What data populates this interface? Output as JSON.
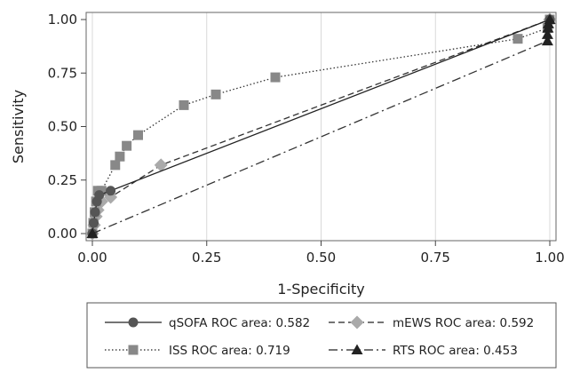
{
  "chart_data": {
    "type": "line",
    "xlabel": "1-Specificity",
    "ylabel": "Sensitivity",
    "xlim": [
      0,
      1
    ],
    "ylim": [
      0,
      1
    ],
    "x_ticks": [
      "0.00",
      "0.25",
      "0.50",
      "0.75",
      "1.00"
    ],
    "y_ticks": [
      "0.00",
      "0.25",
      "0.50",
      "0.75",
      "1.00"
    ],
    "grid": "vertical",
    "legend_position": "bottom",
    "series": [
      {
        "name": "qSOFA ROC area: 0.582",
        "marker": "circle",
        "dash": "solid",
        "color": "#555555",
        "points": [
          [
            0,
            0
          ],
          [
            0.003,
            0.05
          ],
          [
            0.006,
            0.1
          ],
          [
            0.01,
            0.15
          ],
          [
            0.015,
            0.18
          ],
          [
            0.04,
            0.2
          ],
          [
            1,
            1
          ]
        ]
      },
      {
        "name": "mEWS ROC area: 0.592",
        "marker": "diamond",
        "dash": "dashed",
        "color": "#aaaaaa",
        "points": [
          [
            0,
            0
          ],
          [
            0.004,
            0.04
          ],
          [
            0.008,
            0.08
          ],
          [
            0.012,
            0.11
          ],
          [
            0.02,
            0.15
          ],
          [
            0.04,
            0.17
          ],
          [
            0.15,
            0.32
          ],
          [
            1,
            1
          ]
        ]
      },
      {
        "name": "ISS ROC area: 0.719",
        "marker": "square",
        "dash": "dotted",
        "color": "#888888",
        "points": [
          [
            0,
            0
          ],
          [
            0.002,
            0.05
          ],
          [
            0.005,
            0.1
          ],
          [
            0.008,
            0.15
          ],
          [
            0.012,
            0.2
          ],
          [
            0.02,
            0.2
          ],
          [
            0.05,
            0.32
          ],
          [
            0.06,
            0.36
          ],
          [
            0.075,
            0.41
          ],
          [
            0.1,
            0.46
          ],
          [
            0.2,
            0.6
          ],
          [
            0.27,
            0.65
          ],
          [
            0.4,
            0.73
          ],
          [
            0.93,
            0.91
          ],
          [
            0.995,
            0.96
          ],
          [
            1,
            1
          ]
        ]
      },
      {
        "name": "RTS ROC area: 0.453",
        "marker": "triangle",
        "dash": "dashdot",
        "color": "#222222",
        "points": [
          [
            0,
            0
          ],
          [
            0.995,
            0.9
          ],
          [
            0.995,
            0.93
          ],
          [
            0.996,
            0.96
          ],
          [
            0.997,
            0.98
          ],
          [
            1,
            1
          ]
        ]
      }
    ]
  }
}
